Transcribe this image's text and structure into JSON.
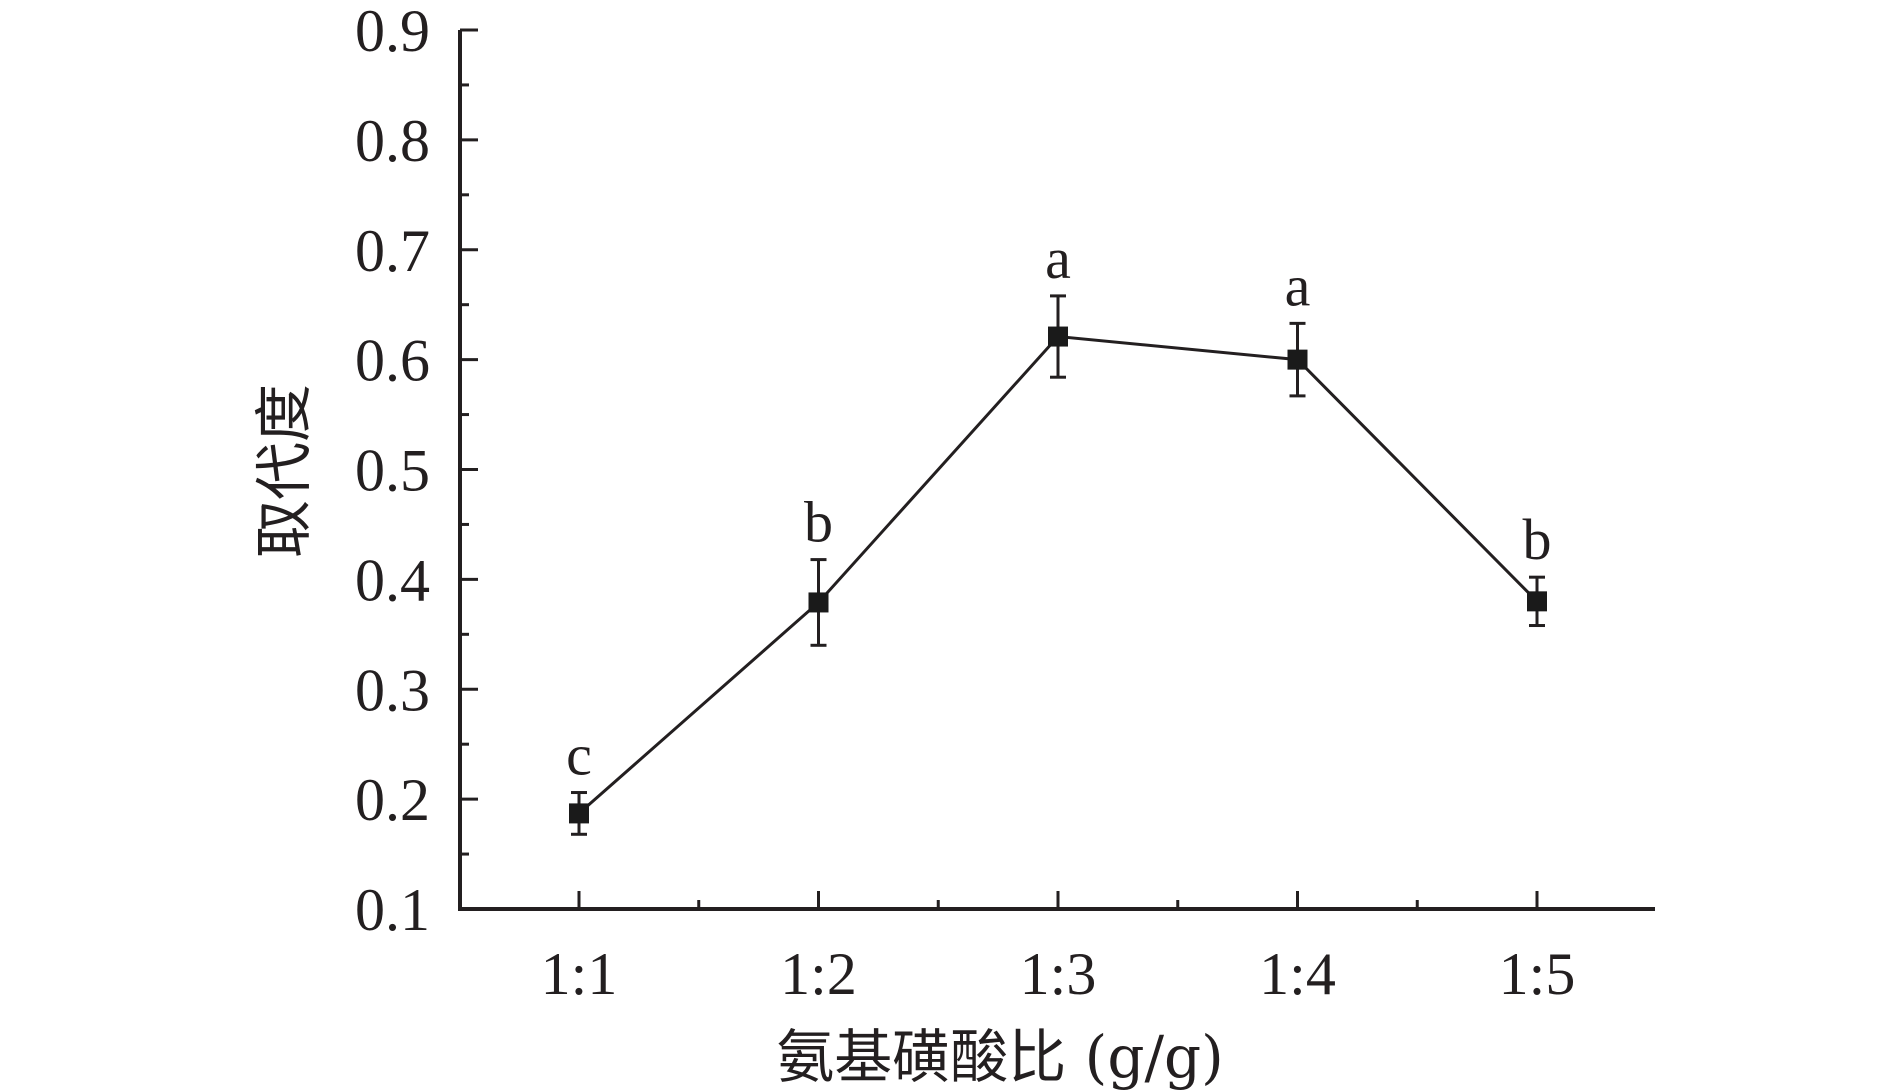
{
  "chart_data": {
    "type": "line",
    "xlabel": "氨基磺酸比 (g/g)",
    "ylabel": "取代度",
    "categories": [
      "1:1",
      "1:2",
      "1:3",
      "1:4",
      "1:5"
    ],
    "series": [
      {
        "values": [
          0.187,
          0.379,
          0.621,
          0.6,
          0.38
        ],
        "errors": [
          0.019,
          0.039,
          0.037,
          0.033,
          0.022
        ],
        "significance": [
          "c",
          "b",
          "a",
          "a",
          "b"
        ]
      }
    ],
    "ylim": [
      0.1,
      0.9
    ],
    "yticks": [
      "0.1",
      "0.2",
      "0.3",
      "0.4",
      "0.5",
      "0.6",
      "0.7",
      "0.8",
      "0.9"
    ],
    "grid": false,
    "legend": "none",
    "colors": {
      "axis": "#231f20",
      "line": "#231f20",
      "marker": "#1a1a1a"
    }
  }
}
